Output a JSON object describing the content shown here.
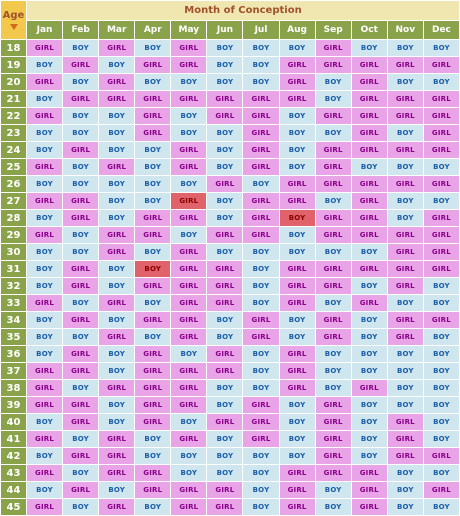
{
  "header": {
    "age_label": "Age",
    "title": "Month of Conception",
    "months": [
      "Jan",
      "Feb",
      "Mar",
      "Apr",
      "May",
      "Jun",
      "Jul",
      "Aug",
      "Sep",
      "Oct",
      "Nov",
      "Dec"
    ]
  },
  "values": {
    "G": "GIRL",
    "B": "BOY"
  },
  "rows": [
    {
      "age": "18",
      "cells": "GBGBGBBBGBBB"
    },
    {
      "age": "19",
      "cells": "BGBGGBBGGGGG"
    },
    {
      "age": "20",
      "cells": "GBGBBBBGBGBB"
    },
    {
      "age": "21",
      "cells": "BGGGGGGGBGGG"
    },
    {
      "age": "22",
      "cells": "GBBGBGGBGGGG"
    },
    {
      "age": "23",
      "cells": "BBBGBBGBBGBG"
    },
    {
      "age": "24",
      "cells": "BGBBGBGBGGGG"
    },
    {
      "age": "25",
      "cells": "GBGBGBGBGBBB"
    },
    {
      "age": "26",
      "cells": "BBBBBGBGGGGG"
    },
    {
      "age": "27",
      "cells": "GGBBGBGGBGBB"
    },
    {
      "age": "28",
      "cells": "BGBGGBGBGGBG"
    },
    {
      "age": "29",
      "cells": "GBGGBGGBGGGG"
    },
    {
      "age": "30",
      "cells": "BBGBGBBBBBGG"
    },
    {
      "age": "31",
      "cells": "BGBBGGBGGGGG"
    },
    {
      "age": "32",
      "cells": "BGBGGGBGGBGB"
    },
    {
      "age": "33",
      "cells": "GBGBGGBGBGBB"
    },
    {
      "age": "34",
      "cells": "BGBGGBGBGBGG"
    },
    {
      "age": "35",
      "cells": "BBGBGBGBGBGB"
    },
    {
      "age": "36",
      "cells": "BGBGBGBGBBBB"
    },
    {
      "age": "37",
      "cells": "GGBGGGBGBBBB"
    },
    {
      "age": "38",
      "cells": "GBGGGBBGBGBB"
    },
    {
      "age": "39",
      "cells": "GGBGGBGBGBBB"
    },
    {
      "age": "40",
      "cells": "BGBGBGGBGBGB"
    },
    {
      "age": "41",
      "cells": "GBGBGBGBGBGB"
    },
    {
      "age": "42",
      "cells": "BGGBBBBBGBGG"
    },
    {
      "age": "43",
      "cells": "GBGGBBBGGGBB"
    },
    {
      "age": "44",
      "cells": "BGBGGGBGBGBG"
    },
    {
      "age": "45",
      "cells": "GBGBGGBGBGBB"
    }
  ],
  "highlights": [
    {
      "age": "27",
      "month": "May"
    },
    {
      "age": "28",
      "month": "Aug"
    },
    {
      "age": "31",
      "month": "Apr"
    }
  ],
  "colors": {
    "girl_cell": "#e8a4e6",
    "boy_cell": "#cfe6ee",
    "highlight_cell": "#e0626a",
    "header_green": "#8aa34a",
    "title_bar": "#efe6b0",
    "age_corner": "#f2c94c"
  }
}
